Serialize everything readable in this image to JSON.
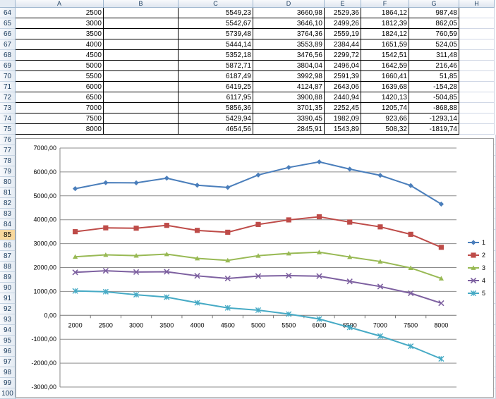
{
  "columns": [
    "A",
    "B",
    "C",
    "D",
    "E",
    "F",
    "G",
    "H"
  ],
  "row_numbers": [
    "64",
    "65",
    "66",
    "67",
    "68",
    "69",
    "70",
    "71",
    "72",
    "73",
    "74",
    "75",
    "76",
    "77",
    "78",
    "79",
    "80",
    "81",
    "82",
    "83",
    "84",
    "85",
    "86",
    "87",
    "88",
    "89",
    "90",
    "91",
    "92",
    "93",
    "94",
    "95",
    "96",
    "97",
    "98",
    "99",
    "100"
  ],
  "selected_row": "85",
  "table_rows": [
    {
      "a": "2500",
      "c": "5549,23",
      "d": "3660,98",
      "e": "2529,36",
      "f": "1864,12",
      "g": "987,48"
    },
    {
      "a": "3000",
      "c": "5542,67",
      "d": "3646,10",
      "e": "2499,26",
      "f": "1812,39",
      "g": "862,05"
    },
    {
      "a": "3500",
      "c": "5739,48",
      "d": "3764,36",
      "e": "2559,19",
      "f": "1824,12",
      "g": "760,59"
    },
    {
      "a": "4000",
      "c": "5444,14",
      "d": "3553,89",
      "e": "2384,44",
      "f": "1651,59",
      "g": "524,05"
    },
    {
      "a": "4500",
      "c": "5352,18",
      "d": "3476,56",
      "e": "2299,72",
      "f": "1542,51",
      "g": "311,48"
    },
    {
      "a": "5000",
      "c": "5872,71",
      "d": "3804,04",
      "e": "2496,04",
      "f": "1642,59",
      "g": "216,46"
    },
    {
      "a": "5500",
      "c": "6187,49",
      "d": "3992,98",
      "e": "2591,39",
      "f": "1660,41",
      "g": "51,85"
    },
    {
      "a": "6000",
      "c": "6419,25",
      "d": "4124,87",
      "e": "2643,06",
      "f": "1639,68",
      "g": "-154,28"
    },
    {
      "a": "6500",
      "c": "6117,95",
      "d": "3900,88",
      "e": "2440,94",
      "f": "1420,13",
      "g": "-504,85"
    },
    {
      "a": "7000",
      "c": "5856,36",
      "d": "3701,35",
      "e": "2252,45",
      "f": "1205,74",
      "g": "-868,88"
    },
    {
      "a": "7500",
      "c": "5429,94",
      "d": "3390,45",
      "e": "1982,09",
      "f": "923,66",
      "g": "-1293,14"
    },
    {
      "a": "8000",
      "c": "4654,56",
      "d": "2845,91",
      "e": "1543,89",
      "f": "508,32",
      "g": "-1819,74"
    }
  ],
  "chart_data": {
    "type": "line",
    "x": [
      "2000",
      "2500",
      "3000",
      "3500",
      "4000",
      "4500",
      "5000",
      "5500",
      "6000",
      "6500",
      "7000",
      "7500",
      "8000"
    ],
    "ylim": [
      -3000,
      7000
    ],
    "y_ticks": [
      "7000,00",
      "6000,00",
      "5000,00",
      "4000,00",
      "3000,00",
      "2000,00",
      "1000,00",
      "0,00",
      "-1000,00",
      "-2000,00",
      "-3000,00"
    ],
    "grid": true,
    "legend_placement": "right",
    "series": [
      {
        "name": "1",
        "color": "#4a7ebb",
        "marker": "diamond",
        "values": [
          5300,
          5549.23,
          5542.67,
          5739.48,
          5444.14,
          5352.18,
          5872.71,
          6187.49,
          6419.25,
          6117.95,
          5856.36,
          5429.94,
          4654.56
        ]
      },
      {
        "name": "2",
        "color": "#be4b48",
        "marker": "square",
        "values": [
          3500,
          3660.98,
          3646.1,
          3764.36,
          3553.89,
          3476.56,
          3804.04,
          3992.98,
          4124.87,
          3900.88,
          3701.35,
          3390.45,
          2845.91
        ]
      },
      {
        "name": "3",
        "color": "#98b954",
        "marker": "triangle",
        "values": [
          2450,
          2529.36,
          2499.26,
          2559.19,
          2384.44,
          2299.72,
          2496.04,
          2591.39,
          2643.06,
          2440.94,
          2252.45,
          1982.09,
          1543.89
        ]
      },
      {
        "name": "4",
        "color": "#7d60a0",
        "marker": "x",
        "values": [
          1800,
          1864.12,
          1812.39,
          1824.12,
          1651.59,
          1542.51,
          1642.59,
          1660.41,
          1639.68,
          1420.13,
          1205.74,
          923.66,
          508.32
        ]
      },
      {
        "name": "5",
        "color": "#46aac5",
        "marker": "star",
        "values": [
          1020,
          987.48,
          862.05,
          760.59,
          524.05,
          311.48,
          216.46,
          51.85,
          -154.28,
          -504.85,
          -868.88,
          -1293.14,
          -1819.74
        ]
      }
    ]
  }
}
